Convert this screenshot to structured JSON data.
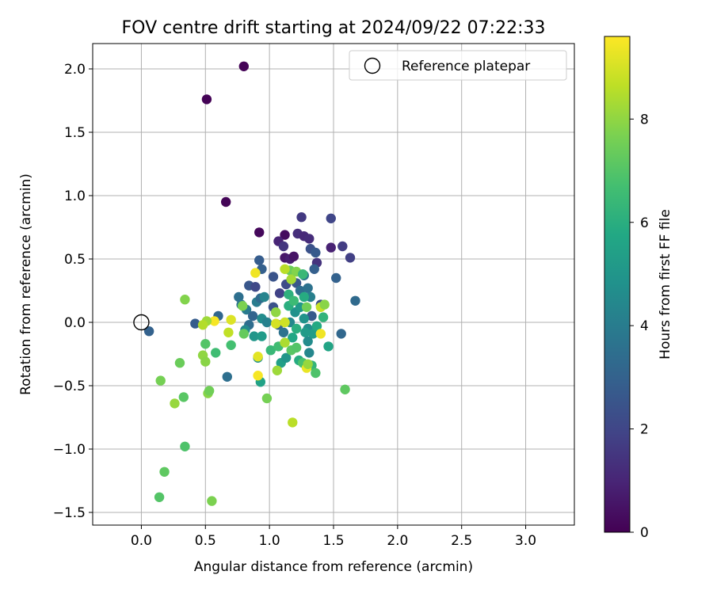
{
  "chart_data": {
    "type": "scatter",
    "title": "FOV centre drift starting at 2024/09/22 07:22:33",
    "xlabel": "Angular distance from reference (arcmin)",
    "ylabel": "Rotation from reference (arcmin)",
    "xlim": [
      -0.38,
      3.38
    ],
    "ylim": [
      -1.6,
      2.2
    ],
    "xticks": [
      0.0,
      0.5,
      1.0,
      1.5,
      2.0,
      2.5,
      3.0
    ],
    "xtick_labels": [
      "0.0",
      "0.5",
      "1.0",
      "1.5",
      "2.0",
      "2.5",
      "3.0"
    ],
    "yticks": [
      -1.5,
      -1.0,
      -0.5,
      0.0,
      0.5,
      1.0,
      1.5,
      2.0
    ],
    "ytick_labels": [
      "−1.5",
      "−1.0",
      "−0.5",
      "0.0",
      "0.5",
      "1.0",
      "1.5",
      "2.0"
    ],
    "grid": true,
    "legend": {
      "position": "top-right",
      "entries": [
        "Reference platepar"
      ]
    },
    "reference_point": {
      "x": 0.0,
      "y": 0.0,
      "label": "Reference platepar"
    },
    "colorbar": {
      "label": "Hours from first FF file",
      "cmap": "viridis",
      "range": [
        0,
        9.6
      ],
      "ticks": [
        0,
        2,
        4,
        6,
        8
      ],
      "tick_labels": [
        "0",
        "2",
        "4",
        "6",
        "8"
      ]
    },
    "points": [
      {
        "x": 0.8,
        "y": 2.02,
        "c": 0.05
      },
      {
        "x": 0.51,
        "y": 1.76,
        "c": 0.05
      },
      {
        "x": 0.66,
        "y": 0.95,
        "c": 0.1
      },
      {
        "x": 0.92,
        "y": 0.71,
        "c": 0.2
      },
      {
        "x": 1.12,
        "y": 0.69,
        "c": 0.3
      },
      {
        "x": 1.07,
        "y": 0.64,
        "c": 1.0
      },
      {
        "x": 1.11,
        "y": 0.6,
        "c": 1.5
      },
      {
        "x": 1.12,
        "y": 0.51,
        "c": 0.6
      },
      {
        "x": 1.16,
        "y": 0.5,
        "c": 0.8
      },
      {
        "x": 1.19,
        "y": 0.52,
        "c": 0.5
      },
      {
        "x": 1.22,
        "y": 0.7,
        "c": 1.3
      },
      {
        "x": 1.25,
        "y": 0.83,
        "c": 1.6
      },
      {
        "x": 1.27,
        "y": 0.68,
        "c": 1.1
      },
      {
        "x": 1.31,
        "y": 0.66,
        "c": 1.2
      },
      {
        "x": 1.32,
        "y": 0.58,
        "c": 2.4
      },
      {
        "x": 1.36,
        "y": 0.55,
        "c": 2.7
      },
      {
        "x": 1.37,
        "y": 0.47,
        "c": 1.4
      },
      {
        "x": 1.35,
        "y": 0.42,
        "c": 2.9
      },
      {
        "x": 1.48,
        "y": 0.82,
        "c": 2.0
      },
      {
        "x": 1.48,
        "y": 0.59,
        "c": 0.9
      },
      {
        "x": 1.57,
        "y": 0.6,
        "c": 1.7
      },
      {
        "x": 1.63,
        "y": 0.51,
        "c": 1.8
      },
      {
        "x": 1.52,
        "y": 0.35,
        "c": 3.0
      },
      {
        "x": 1.67,
        "y": 0.17,
        "c": 3.3
      },
      {
        "x": 1.56,
        "y": -0.09,
        "c": 3.2
      },
      {
        "x": 0.92,
        "y": 0.49,
        "c": 2.8
      },
      {
        "x": 0.94,
        "y": 0.42,
        "c": 2.9
      },
      {
        "x": 0.84,
        "y": 0.29,
        "c": 2.6
      },
      {
        "x": 0.89,
        "y": 0.28,
        "c": 2.1
      },
      {
        "x": 1.03,
        "y": 0.36,
        "c": 2.5
      },
      {
        "x": 1.08,
        "y": 0.23,
        "c": 1.9
      },
      {
        "x": 1.13,
        "y": 0.3,
        "c": 2.2
      },
      {
        "x": 1.21,
        "y": 0.31,
        "c": 2.6
      },
      {
        "x": 1.24,
        "y": 0.25,
        "c": 3.4
      },
      {
        "x": 1.27,
        "y": 0.37,
        "c": 3.8
      },
      {
        "x": 1.3,
        "y": 0.27,
        "c": 3.6
      },
      {
        "x": 1.32,
        "y": 0.2,
        "c": 4.1
      },
      {
        "x": 1.33,
        "y": 0.05,
        "c": 2.7
      },
      {
        "x": 1.4,
        "y": 0.14,
        "c": 2.3
      },
      {
        "x": 0.76,
        "y": 0.2,
        "c": 3.5
      },
      {
        "x": 0.78,
        "y": 0.14,
        "c": 3.7
      },
      {
        "x": 0.82,
        "y": 0.1,
        "c": 3.9
      },
      {
        "x": 0.87,
        "y": 0.05,
        "c": 3.1
      },
      {
        "x": 0.9,
        "y": 0.16,
        "c": 4.0
      },
      {
        "x": 0.93,
        "y": 0.19,
        "c": 3.3
      },
      {
        "x": 0.96,
        "y": 0.2,
        "c": 4.3
      },
      {
        "x": 0.84,
        "y": -0.02,
        "c": 3.4
      },
      {
        "x": 0.94,
        "y": 0.03,
        "c": 4.6
      },
      {
        "x": 0.98,
        "y": 0.0,
        "c": 4.2
      },
      {
        "x": 1.03,
        "y": 0.12,
        "c": 2.4
      },
      {
        "x": 1.07,
        "y": -0.02,
        "c": 3.0
      },
      {
        "x": 1.11,
        "y": -0.08,
        "c": 3.6
      },
      {
        "x": 1.16,
        "y": 0.0,
        "c": 4.4
      },
      {
        "x": 1.2,
        "y": 0.08,
        "c": 4.8
      },
      {
        "x": 1.24,
        "y": 0.12,
        "c": 5.1
      },
      {
        "x": 1.27,
        "y": 0.03,
        "c": 4.9
      },
      {
        "x": 1.3,
        "y": -0.05,
        "c": 4.7
      },
      {
        "x": 1.34,
        "y": -0.09,
        "c": 5.3
      },
      {
        "x": 1.37,
        "y": -0.03,
        "c": 5.8
      },
      {
        "x": 1.42,
        "y": 0.04,
        "c": 6.2
      },
      {
        "x": 1.46,
        "y": -0.19,
        "c": 5.6
      },
      {
        "x": 0.6,
        "y": 0.05,
        "c": 3.2
      },
      {
        "x": 0.42,
        "y": -0.01,
        "c": 2.8
      },
      {
        "x": 0.06,
        "y": -0.07,
        "c": 3.0
      },
      {
        "x": 0.67,
        "y": -0.43,
        "c": 3.5
      },
      {
        "x": 0.81,
        "y": -0.06,
        "c": 4.5
      },
      {
        "x": 0.88,
        "y": -0.11,
        "c": 5.0
      },
      {
        "x": 0.94,
        "y": -0.11,
        "c": 5.2
      },
      {
        "x": 0.91,
        "y": -0.28,
        "c": 4.8
      },
      {
        "x": 0.93,
        "y": -0.47,
        "c": 5.5
      },
      {
        "x": 1.01,
        "y": -0.22,
        "c": 6.4
      },
      {
        "x": 1.07,
        "y": -0.19,
        "c": 6.6
      },
      {
        "x": 1.09,
        "y": -0.32,
        "c": 5.4
      },
      {
        "x": 1.13,
        "y": -0.28,
        "c": 5.0
      },
      {
        "x": 1.18,
        "y": -0.12,
        "c": 5.7
      },
      {
        "x": 1.21,
        "y": -0.05,
        "c": 6.0
      },
      {
        "x": 1.23,
        "y": -0.3,
        "c": 5.9
      },
      {
        "x": 1.26,
        "y": -0.32,
        "c": 6.8
      },
      {
        "x": 1.28,
        "y": -0.08,
        "c": 5.2
      },
      {
        "x": 1.3,
        "y": -0.15,
        "c": 4.6
      },
      {
        "x": 1.31,
        "y": -0.24,
        "c": 4.4
      },
      {
        "x": 1.33,
        "y": -0.34,
        "c": 6.3
      },
      {
        "x": 1.36,
        "y": -0.4,
        "c": 6.9
      },
      {
        "x": 1.16,
        "y": 0.41,
        "c": 7.4
      },
      {
        "x": 1.17,
        "y": 0.34,
        "c": 8.3
      },
      {
        "x": 1.21,
        "y": 0.4,
        "c": 7.8
      },
      {
        "x": 1.12,
        "y": 0.42,
        "c": 8.6
      },
      {
        "x": 1.26,
        "y": 0.38,
        "c": 6.4
      },
      {
        "x": 1.15,
        "y": 0.22,
        "c": 6.1
      },
      {
        "x": 1.15,
        "y": 0.13,
        "c": 6.0
      },
      {
        "x": 1.19,
        "y": 0.17,
        "c": 6.5
      },
      {
        "x": 1.27,
        "y": 0.2,
        "c": 5.9
      },
      {
        "x": 1.29,
        "y": 0.12,
        "c": 7.5
      },
      {
        "x": 1.4,
        "y": 0.12,
        "c": 8.8
      },
      {
        "x": 1.43,
        "y": 0.14,
        "c": 7.9
      },
      {
        "x": 1.05,
        "y": 0.08,
        "c": 8.0
      },
      {
        "x": 1.05,
        "y": -0.01,
        "c": 9.0
      },
      {
        "x": 1.12,
        "y": 0.0,
        "c": 8.9
      },
      {
        "x": 1.12,
        "y": -0.16,
        "c": 8.4
      },
      {
        "x": 1.06,
        "y": -0.38,
        "c": 8.2
      },
      {
        "x": 1.17,
        "y": -0.22,
        "c": 7.1
      },
      {
        "x": 1.21,
        "y": -0.2,
        "c": 7.0
      },
      {
        "x": 1.29,
        "y": -0.36,
        "c": 9.3
      },
      {
        "x": 1.3,
        "y": -0.33,
        "c": 8.1
      },
      {
        "x": 1.4,
        "y": -0.09,
        "c": 9.4
      },
      {
        "x": 1.59,
        "y": -0.53,
        "c": 7.2
      },
      {
        "x": 0.91,
        "y": -0.42,
        "c": 9.5
      },
      {
        "x": 0.91,
        "y": -0.27,
        "c": 9.2
      },
      {
        "x": 0.98,
        "y": -0.6,
        "c": 7.6
      },
      {
        "x": 0.89,
        "y": 0.39,
        "c": 9.4
      },
      {
        "x": 0.79,
        "y": 0.13,
        "c": 7.7
      },
      {
        "x": 0.8,
        "y": -0.09,
        "c": 7.3
      },
      {
        "x": 0.7,
        "y": 0.02,
        "c": 9.1
      },
      {
        "x": 0.68,
        "y": -0.08,
        "c": 8.7
      },
      {
        "x": 0.7,
        "y": -0.18,
        "c": 6.7
      },
      {
        "x": 0.57,
        "y": 0.01,
        "c": 9.5
      },
      {
        "x": 0.51,
        "y": 0.01,
        "c": 8.2
      },
      {
        "x": 0.48,
        "y": -0.02,
        "c": 8.5
      },
      {
        "x": 0.5,
        "y": -0.17,
        "c": 7.0
      },
      {
        "x": 0.48,
        "y": -0.26,
        "c": 8.0
      },
      {
        "x": 0.5,
        "y": -0.31,
        "c": 7.9
      },
      {
        "x": 0.58,
        "y": -0.24,
        "c": 6.6
      },
      {
        "x": 0.34,
        "y": 0.18,
        "c": 7.8
      },
      {
        "x": 0.3,
        "y": -0.32,
        "c": 7.4
      },
      {
        "x": 0.52,
        "y": -0.56,
        "c": 7.9
      },
      {
        "x": 0.53,
        "y": -0.54,
        "c": 7.5
      },
      {
        "x": 0.33,
        "y": -0.59,
        "c": 7.1
      },
      {
        "x": 0.26,
        "y": -0.64,
        "c": 8.1
      },
      {
        "x": 0.15,
        "y": -0.46,
        "c": 7.6
      },
      {
        "x": 0.34,
        "y": -0.98,
        "c": 6.9
      },
      {
        "x": 0.18,
        "y": -1.18,
        "c": 7.2
      },
      {
        "x": 0.14,
        "y": -1.38,
        "c": 7.0
      },
      {
        "x": 0.55,
        "y": -1.41,
        "c": 7.7
      },
      {
        "x": 1.18,
        "y": -0.79,
        "c": 8.6
      }
    ]
  }
}
